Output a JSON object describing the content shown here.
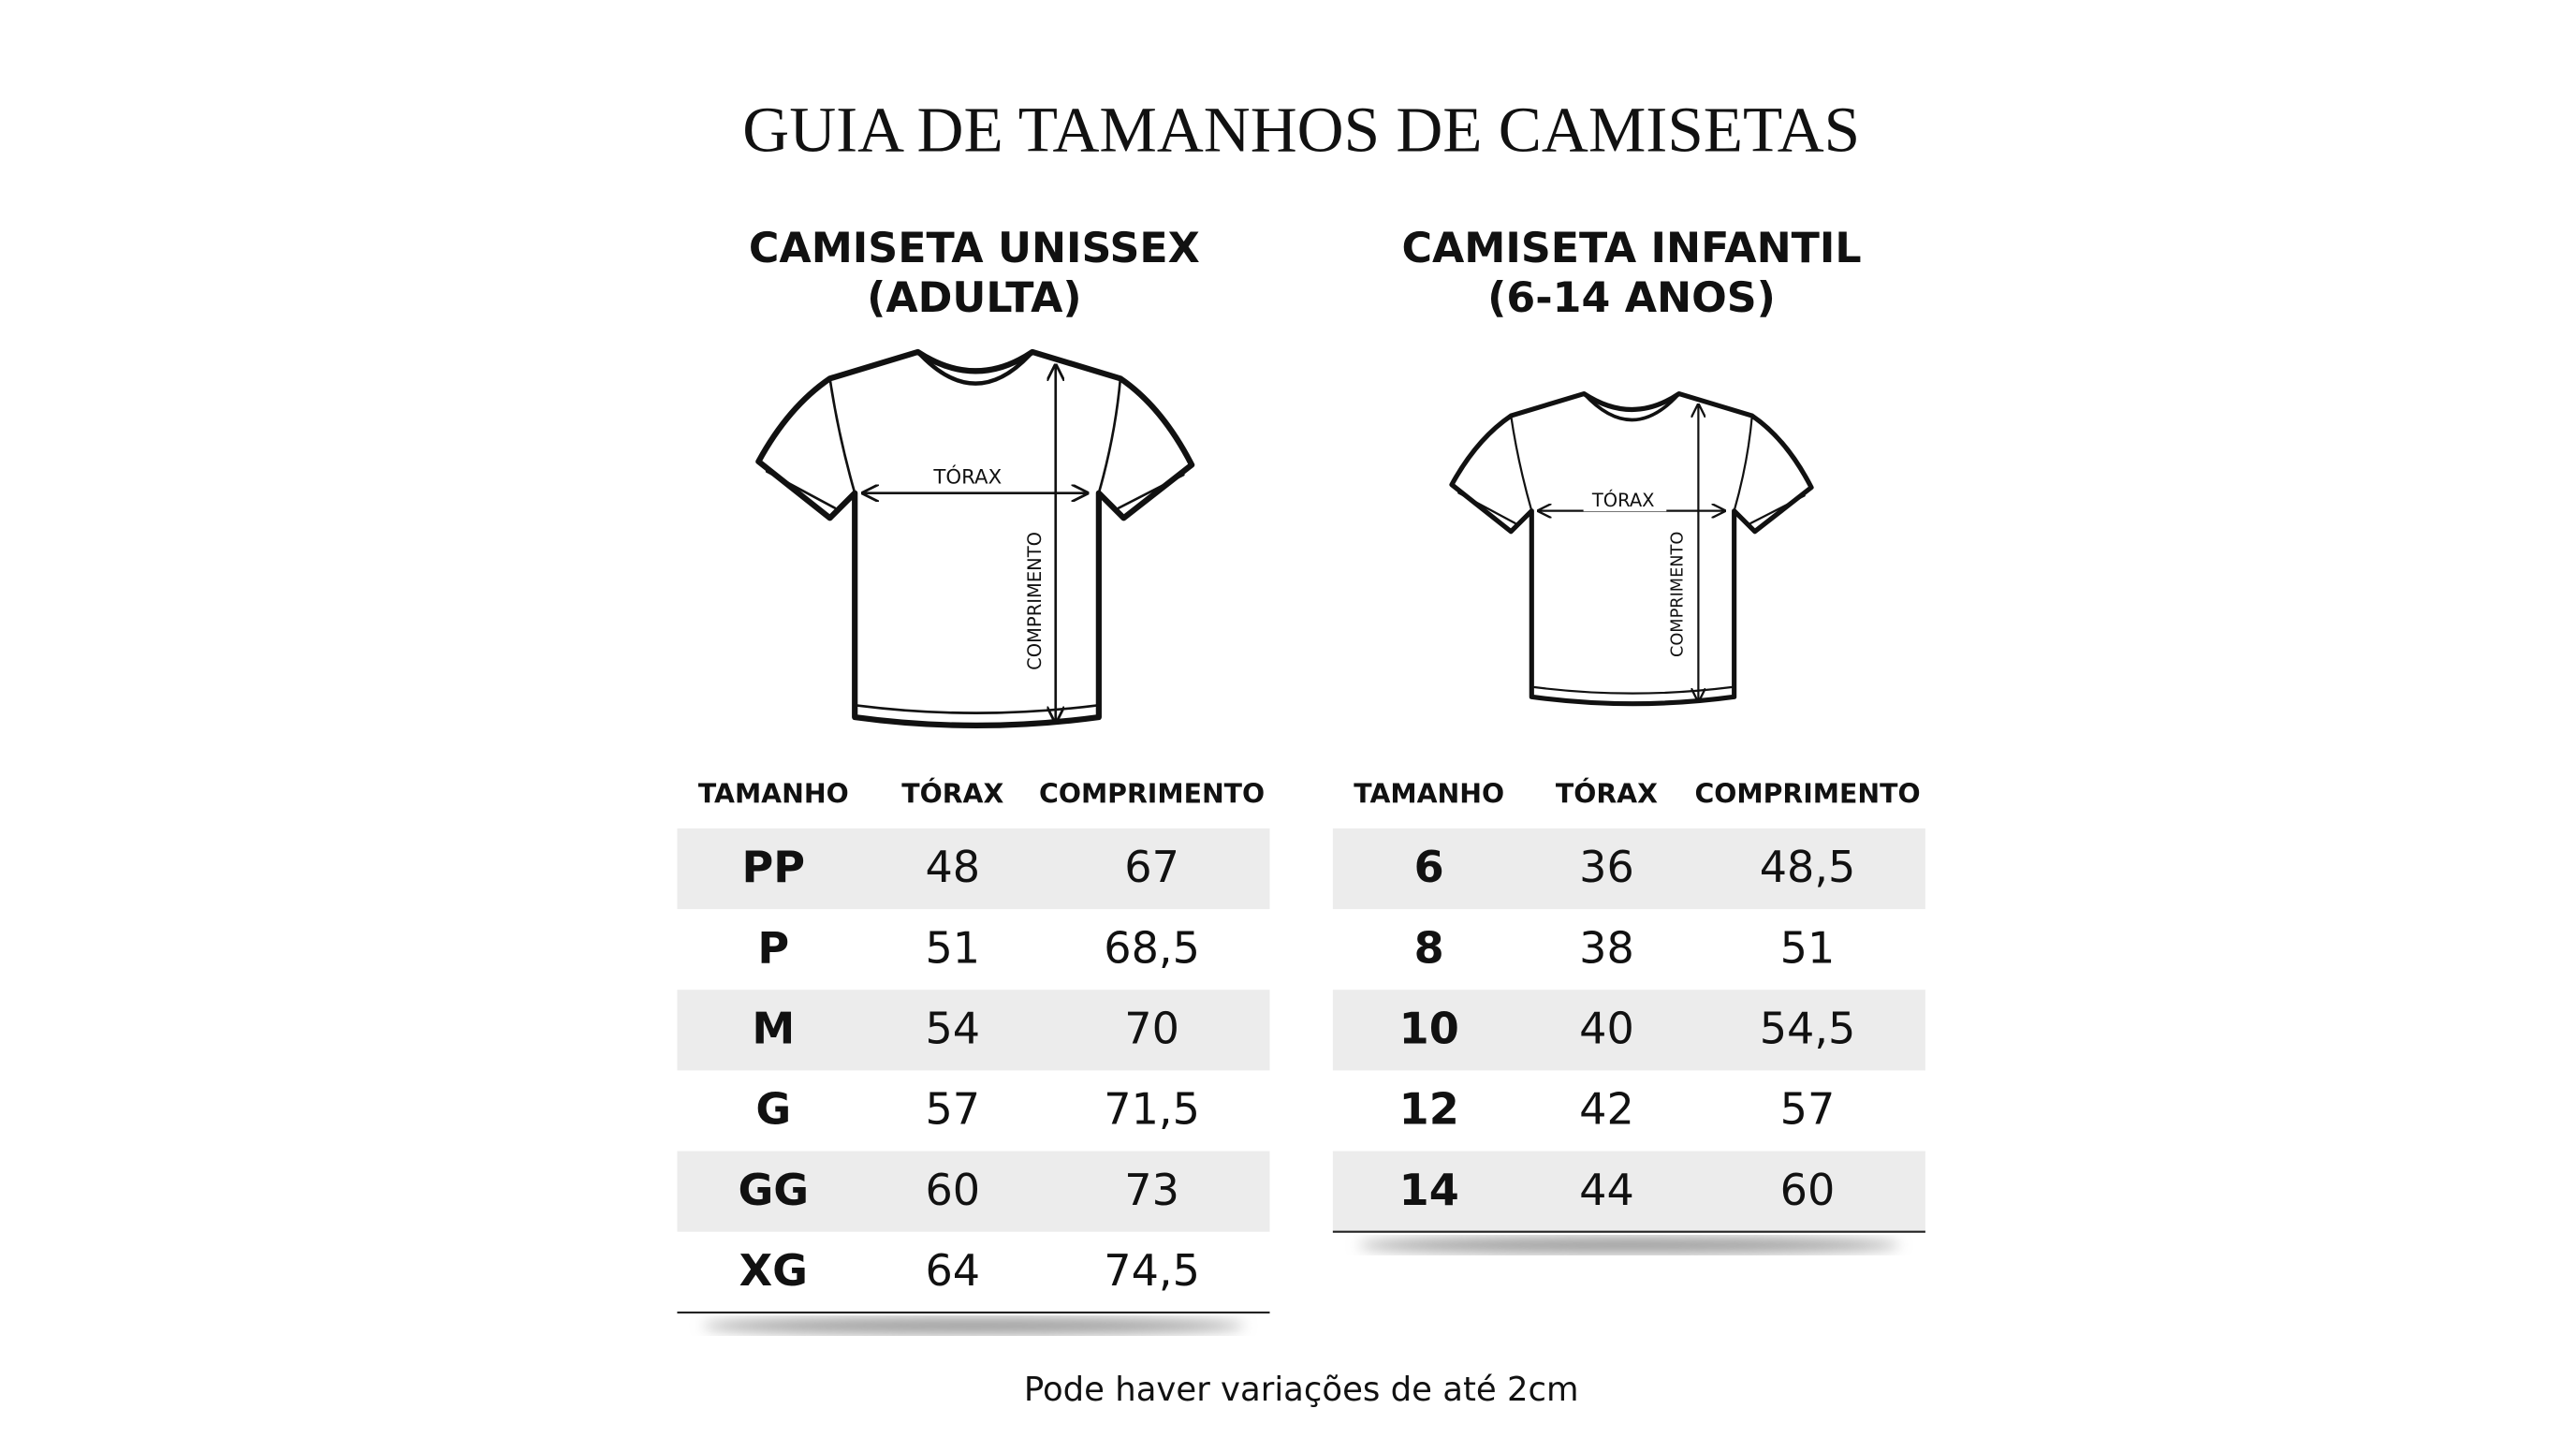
{
  "header": {
    "title": "GUIA DE TAMANHOS DE CAMISETAS"
  },
  "sections": [
    {
      "title_lines": [
        "CAMISETA UNISSEX",
        "(ADULTA)"
      ],
      "chest_label": "TÓRAX",
      "length_label": "COMPRIMENTO",
      "table": {
        "columns": [
          "TAMANHO",
          "TÓRAX",
          "COMPRIMENTO"
        ],
        "rows": [
          [
            "PP",
            "48",
            "67"
          ],
          [
            "P",
            "51",
            "68,5"
          ],
          [
            "M",
            "54",
            "70"
          ],
          [
            "G",
            "57",
            "71,5"
          ],
          [
            "GG",
            "60",
            "73"
          ],
          [
            "XG",
            "64",
            "74,5"
          ]
        ]
      }
    },
    {
      "title_lines": [
        "CAMISETA INFANTIL",
        "(6-14 ANOS)"
      ],
      "chest_label": "TÓRAX",
      "length_label": "COMPRIMENTO",
      "table": {
        "columns": [
          "TAMANHO",
          "TÓRAX",
          "COMPRIMENTO"
        ],
        "rows": [
          [
            "6",
            "36",
            "48,5"
          ],
          [
            "8",
            "38",
            "51"
          ],
          [
            "10",
            "40",
            "54,5"
          ],
          [
            "12",
            "42",
            "57"
          ],
          [
            "14",
            "44",
            "60"
          ]
        ]
      }
    }
  ],
  "footer": {
    "note": "Pode haver variações de até 2cm"
  }
}
